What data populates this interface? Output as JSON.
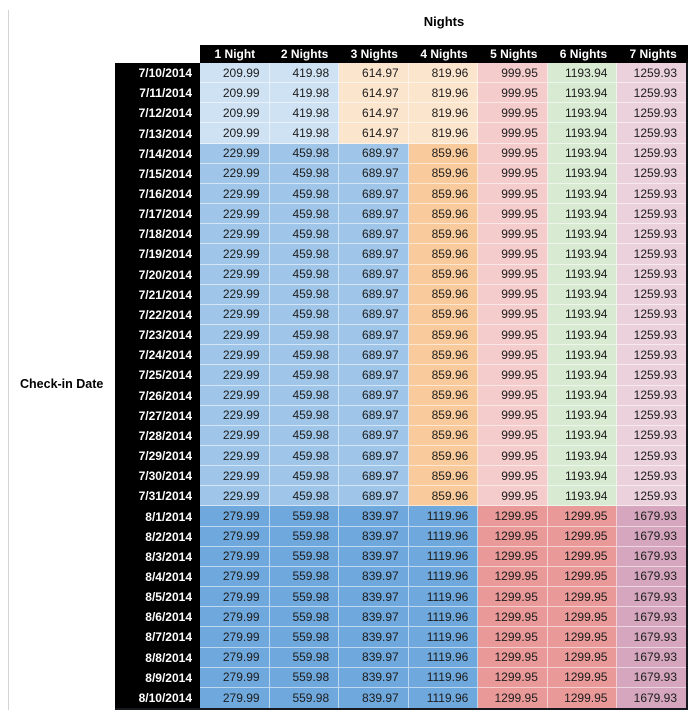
{
  "page": {
    "background": "#ffffff",
    "left_rule_color": "#d4d4d4"
  },
  "chart_data": {
    "type": "table",
    "title": "Nights",
    "row_label": "Check-in Date",
    "columns": [
      "1 Night",
      "2 Nights",
      "3 Nights",
      "4 Nights",
      "5 Nights",
      "6 Nights",
      "7 Nights"
    ],
    "header_bg": "#000000",
    "header_text_color": "#ffffff",
    "palette": {
      "light_blue": "#CFE2F3",
      "medium_blue": "#9FC5E8",
      "strong_blue": "#6FA8DC",
      "light_orange": "#FCE5CD",
      "medium_orange": "#F9CB9C",
      "light_red": "#F4CCCC",
      "strong_red": "#EA9999",
      "light_green": "#D9EAD3",
      "light_magenta": "#EAD1DC",
      "strong_magenta": "#D5A6BD"
    },
    "color_groups": {
      "A": [
        "light_blue",
        "light_blue",
        "light_orange",
        "light_orange",
        "light_red",
        "light_green",
        "light_magenta"
      ],
      "B": [
        "medium_blue",
        "medium_blue",
        "medium_blue",
        "medium_orange",
        "light_red",
        "light_green",
        "light_magenta"
      ],
      "C": [
        "strong_blue",
        "strong_blue",
        "strong_blue",
        "strong_blue",
        "strong_red",
        "strong_red",
        "strong_magenta"
      ]
    },
    "rows": [
      {
        "date": "7/10/2014",
        "color_group": "A",
        "values": [
          "209.99",
          "419.98",
          "614.97",
          "819.96",
          "999.95",
          "1193.94",
          "1259.93"
        ]
      },
      {
        "date": "7/11/2014",
        "color_group": "A",
        "values": [
          "209.99",
          "419.98",
          "614.97",
          "819.96",
          "999.95",
          "1193.94",
          "1259.93"
        ]
      },
      {
        "date": "7/12/2014",
        "color_group": "A",
        "values": [
          "209.99",
          "419.98",
          "614.97",
          "819.96",
          "999.95",
          "1193.94",
          "1259.93"
        ]
      },
      {
        "date": "7/13/2014",
        "color_group": "A",
        "values": [
          "209.99",
          "419.98",
          "614.97",
          "819.96",
          "999.95",
          "1193.94",
          "1259.93"
        ]
      },
      {
        "date": "7/14/2014",
        "color_group": "B",
        "values": [
          "229.99",
          "459.98",
          "689.97",
          "859.96",
          "999.95",
          "1193.94",
          "1259.93"
        ]
      },
      {
        "date": "7/15/2014",
        "color_group": "B",
        "values": [
          "229.99",
          "459.98",
          "689.97",
          "859.96",
          "999.95",
          "1193.94",
          "1259.93"
        ]
      },
      {
        "date": "7/16/2014",
        "color_group": "B",
        "values": [
          "229.99",
          "459.98",
          "689.97",
          "859.96",
          "999.95",
          "1193.94",
          "1259.93"
        ]
      },
      {
        "date": "7/17/2014",
        "color_group": "B",
        "values": [
          "229.99",
          "459.98",
          "689.97",
          "859.96",
          "999.95",
          "1193.94",
          "1259.93"
        ]
      },
      {
        "date": "7/18/2014",
        "color_group": "B",
        "values": [
          "229.99",
          "459.98",
          "689.97",
          "859.96",
          "999.95",
          "1193.94",
          "1259.93"
        ]
      },
      {
        "date": "7/19/2014",
        "color_group": "B",
        "values": [
          "229.99",
          "459.98",
          "689.97",
          "859.96",
          "999.95",
          "1193.94",
          "1259.93"
        ]
      },
      {
        "date": "7/20/2014",
        "color_group": "B",
        "values": [
          "229.99",
          "459.98",
          "689.97",
          "859.96",
          "999.95",
          "1193.94",
          "1259.93"
        ]
      },
      {
        "date": "7/21/2014",
        "color_group": "B",
        "values": [
          "229.99",
          "459.98",
          "689.97",
          "859.96",
          "999.95",
          "1193.94",
          "1259.93"
        ]
      },
      {
        "date": "7/22/2014",
        "color_group": "B",
        "values": [
          "229.99",
          "459.98",
          "689.97",
          "859.96",
          "999.95",
          "1193.94",
          "1259.93"
        ]
      },
      {
        "date": "7/23/2014",
        "color_group": "B",
        "values": [
          "229.99",
          "459.98",
          "689.97",
          "859.96",
          "999.95",
          "1193.94",
          "1259.93"
        ]
      },
      {
        "date": "7/24/2014",
        "color_group": "B",
        "values": [
          "229.99",
          "459.98",
          "689.97",
          "859.96",
          "999.95",
          "1193.94",
          "1259.93"
        ]
      },
      {
        "date": "7/25/2014",
        "color_group": "B",
        "values": [
          "229.99",
          "459.98",
          "689.97",
          "859.96",
          "999.95",
          "1193.94",
          "1259.93"
        ]
      },
      {
        "date": "7/26/2014",
        "color_group": "B",
        "values": [
          "229.99",
          "459.98",
          "689.97",
          "859.96",
          "999.95",
          "1193.94",
          "1259.93"
        ]
      },
      {
        "date": "7/27/2014",
        "color_group": "B",
        "values": [
          "229.99",
          "459.98",
          "689.97",
          "859.96",
          "999.95",
          "1193.94",
          "1259.93"
        ]
      },
      {
        "date": "7/28/2014",
        "color_group": "B",
        "values": [
          "229.99",
          "459.98",
          "689.97",
          "859.96",
          "999.95",
          "1193.94",
          "1259.93"
        ]
      },
      {
        "date": "7/29/2014",
        "color_group": "B",
        "values": [
          "229.99",
          "459.98",
          "689.97",
          "859.96",
          "999.95",
          "1193.94",
          "1259.93"
        ]
      },
      {
        "date": "7/30/2014",
        "color_group": "B",
        "values": [
          "229.99",
          "459.98",
          "689.97",
          "859.96",
          "999.95",
          "1193.94",
          "1259.93"
        ]
      },
      {
        "date": "7/31/2014",
        "color_group": "B",
        "values": [
          "229.99",
          "459.98",
          "689.97",
          "859.96",
          "999.95",
          "1193.94",
          "1259.93"
        ]
      },
      {
        "date": "8/1/2014",
        "color_group": "C",
        "values": [
          "279.99",
          "559.98",
          "839.97",
          "1119.96",
          "1299.95",
          "1299.95",
          "1679.93"
        ]
      },
      {
        "date": "8/2/2014",
        "color_group": "C",
        "values": [
          "279.99",
          "559.98",
          "839.97",
          "1119.96",
          "1299.95",
          "1299.95",
          "1679.93"
        ]
      },
      {
        "date": "8/3/2014",
        "color_group": "C",
        "values": [
          "279.99",
          "559.98",
          "839.97",
          "1119.96",
          "1299.95",
          "1299.95",
          "1679.93"
        ]
      },
      {
        "date": "8/4/2014",
        "color_group": "C",
        "values": [
          "279.99",
          "559.98",
          "839.97",
          "1119.96",
          "1299.95",
          "1299.95",
          "1679.93"
        ]
      },
      {
        "date": "8/5/2014",
        "color_group": "C",
        "values": [
          "279.99",
          "559.98",
          "839.97",
          "1119.96",
          "1299.95",
          "1299.95",
          "1679.93"
        ]
      },
      {
        "date": "8/6/2014",
        "color_group": "C",
        "values": [
          "279.99",
          "559.98",
          "839.97",
          "1119.96",
          "1299.95",
          "1299.95",
          "1679.93"
        ]
      },
      {
        "date": "8/7/2014",
        "color_group": "C",
        "values": [
          "279.99",
          "559.98",
          "839.97",
          "1119.96",
          "1299.95",
          "1299.95",
          "1679.93"
        ]
      },
      {
        "date": "8/8/2014",
        "color_group": "C",
        "values": [
          "279.99",
          "559.98",
          "839.97",
          "1119.96",
          "1299.95",
          "1299.95",
          "1679.93"
        ]
      },
      {
        "date": "8/9/2014",
        "color_group": "C",
        "values": [
          "279.99",
          "559.98",
          "839.97",
          "1119.96",
          "1299.95",
          "1299.95",
          "1679.93"
        ]
      },
      {
        "date": "8/10/2014",
        "color_group": "C",
        "values": [
          "279.99",
          "559.98",
          "839.97",
          "1119.96",
          "1299.95",
          "1299.95",
          "1679.93"
        ]
      }
    ]
  }
}
